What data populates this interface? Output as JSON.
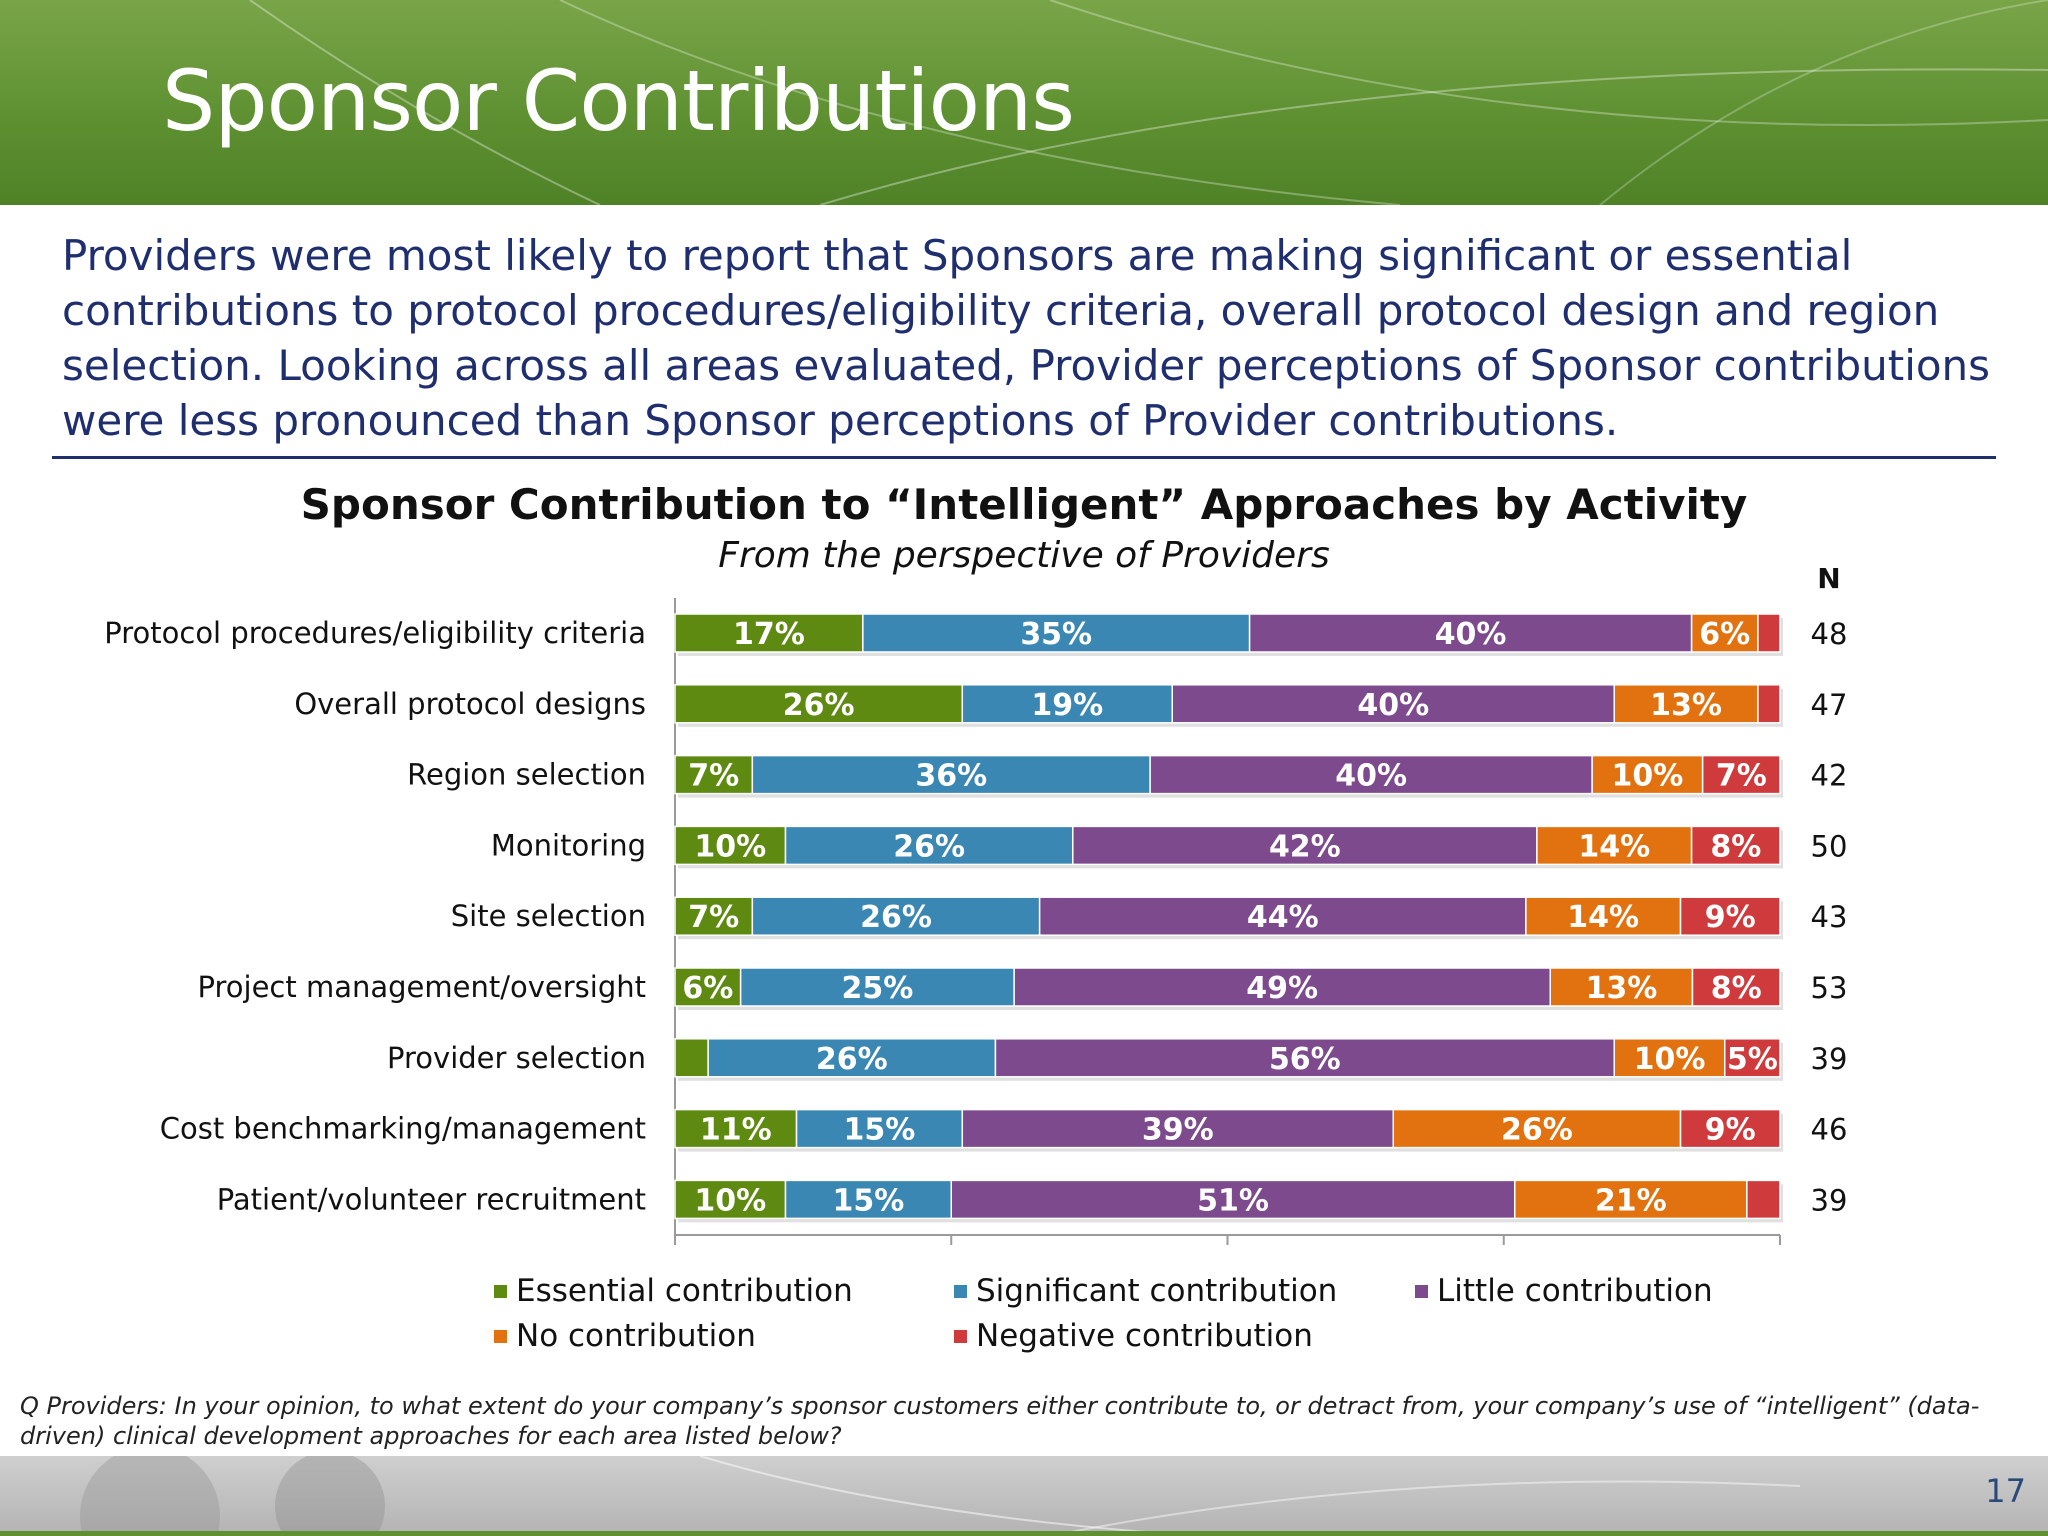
{
  "slide": {
    "title": "Sponsor Contributions",
    "summary": "Providers were most likely to report that Sponsors are making significant or essential contributions to protocol procedures/eligibility criteria, overall protocol design and region selection. Looking across all areas evaluated, Provider perceptions of Sponsor contributions were less pronounced than Sponsor perceptions of Provider contributions.",
    "question": "Q Providers: In your opinion, to what extent do your company’s sponsor customers either contribute to, or detract from, your company’s use of “intelligent” (data-driven) clinical development approaches for each area listed below?",
    "page_number": "17"
  },
  "chart_data": {
    "type": "bar",
    "orientation": "horizontal",
    "stacked": true,
    "title": "Sponsor Contribution to “Intelligent” Approaches by Activity",
    "subtitle": "From the perspective of Providers",
    "n_header": "N",
    "categories": [
      "Protocol procedures/eligibility criteria",
      "Overall protocol designs",
      "Region selection",
      "Monitoring",
      "Site selection",
      "Project management/oversight",
      "Provider selection",
      "Cost benchmarking/management",
      "Patient/volunteer recruitment"
    ],
    "n": [
      48,
      47,
      42,
      50,
      43,
      53,
      39,
      46,
      39
    ],
    "series": [
      {
        "name": "Essential contribution",
        "color": "#5f8a12",
        "values": [
          17,
          26,
          7,
          10,
          7,
          6,
          3,
          11,
          10
        ]
      },
      {
        "name": "Significant contribution",
        "color": "#3b87b3",
        "values": [
          35,
          19,
          36,
          26,
          26,
          25,
          26,
          15,
          15
        ]
      },
      {
        "name": "Little contribution",
        "color": "#7d4a8e",
        "values": [
          40,
          40,
          40,
          42,
          44,
          49,
          56,
          39,
          51
        ]
      },
      {
        "name": "No contribution",
        "color": "#e2720f",
        "values": [
          6,
          13,
          10,
          14,
          14,
          13,
          10,
          26,
          21
        ]
      },
      {
        "name": "Negative contribution",
        "color": "#cf3a3c",
        "values": [
          2,
          2,
          7,
          8,
          9,
          8,
          5,
          9,
          3
        ]
      }
    ],
    "value_labels": [
      [
        "17%",
        "35%",
        "40%",
        "6%",
        ""
      ],
      [
        "26%",
        "19%",
        "40%",
        "13%",
        ""
      ],
      [
        "7%",
        "36%",
        "40%",
        "10%",
        "7%"
      ],
      [
        "10%",
        "26%",
        "42%",
        "14%",
        "8%"
      ],
      [
        "7%",
        "26%",
        "44%",
        "14%",
        "9%"
      ],
      [
        "6%",
        "25%",
        "49%",
        "13%",
        "8%"
      ],
      [
        "",
        "26%",
        "56%",
        "10%",
        "5%"
      ],
      [
        "11%",
        "15%",
        "39%",
        "26%",
        "9%"
      ],
      [
        "10%",
        "15%",
        "51%",
        "21%",
        ""
      ]
    ],
    "xlim": [
      0,
      100
    ],
    "legend_position": "bottom"
  }
}
